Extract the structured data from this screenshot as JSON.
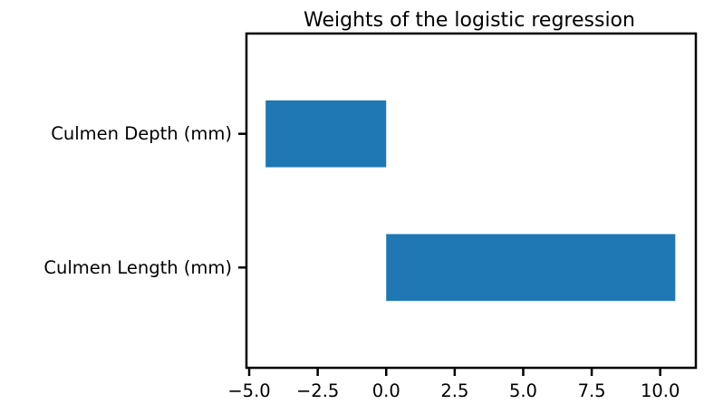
{
  "chart_data": {
    "type": "bar",
    "orientation": "horizontal",
    "title": "Weights of the logistic regression",
    "xlabel": "",
    "ylabel": "",
    "categories": [
      "Culmen Length (mm)",
      "Culmen Depth (mm)"
    ],
    "values": [
      10.55,
      -4.4
    ],
    "xlim": [
      -5.1,
      11.3
    ],
    "xticks": [
      -5.0,
      -2.5,
      0.0,
      2.5,
      5.0,
      7.5,
      10.0
    ],
    "xtick_labels": [
      "−5.0",
      "−2.5",
      "0.0",
      "2.5",
      "5.0",
      "7.5",
      "10.0"
    ],
    "bar_color": "#1f77b4",
    "grid": false,
    "legend": "none"
  }
}
